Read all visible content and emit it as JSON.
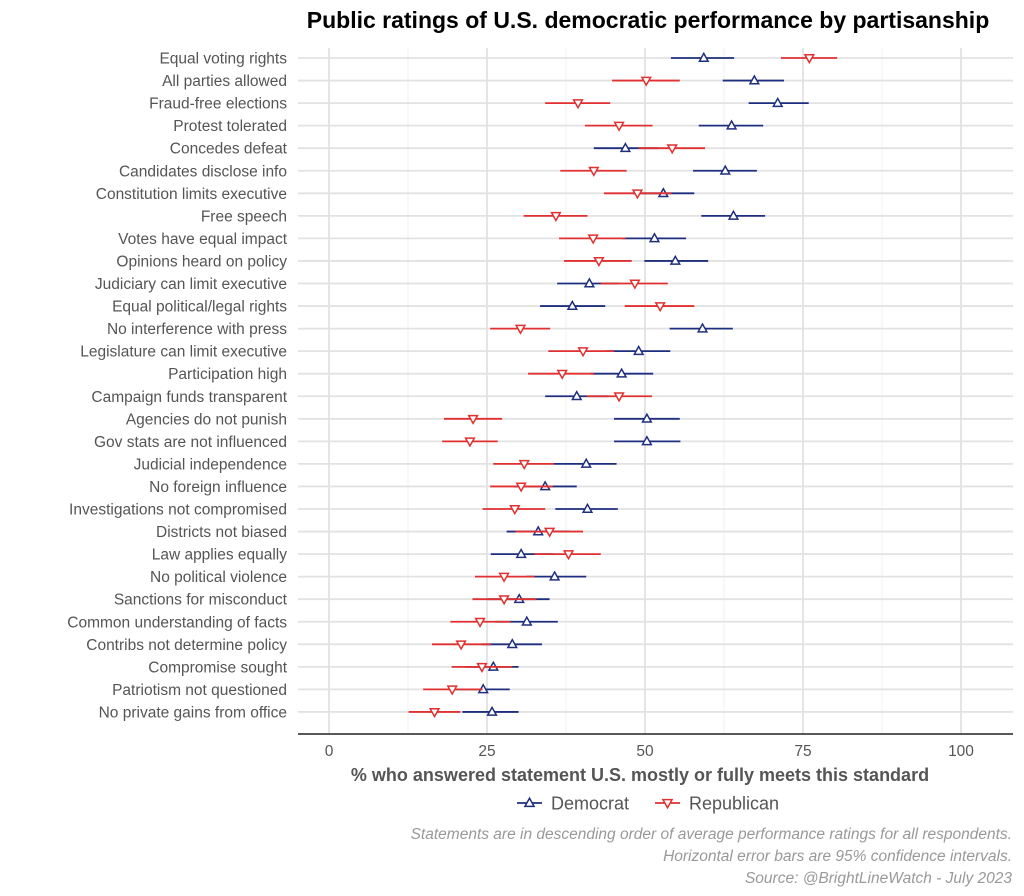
{
  "chart_data": {
    "type": "dot-errorbar",
    "title": "Public ratings of U.S. democratic performance by partisanship",
    "xlabel": "% who answered statement U.S. mostly or fully meets this standard",
    "xlim": [
      -5,
      108
    ],
    "xticks": [
      0,
      25,
      50,
      75,
      100
    ],
    "x_tick_labels": [
      "0",
      "25",
      "50",
      "75",
      "100"
    ],
    "grid": true,
    "legend_position": "bottom",
    "categories": [
      "Equal voting rights",
      "All parties allowed",
      "Fraud-free elections",
      "Protest tolerated",
      "Concedes defeat",
      "Candidates disclose info",
      "Constitution limits executive",
      "Free speech",
      "Votes have equal impact",
      "Opinions heard on policy",
      "Judiciary can limit executive",
      "Equal political/legal rights",
      "No interference with press",
      "Legislature can limit executive",
      "Participation high",
      "Campaign funds transparent",
      "Agencies do not punish",
      "Gov stats are not influenced",
      "Judicial independence",
      "No foreign influence",
      "Investigations not compromised",
      "Districts not biased",
      "Law applies equally",
      "No political violence",
      "Sanctions for misconduct",
      "Common understanding of facts",
      "Contribs not determine policy",
      "Compromise sought",
      "Patriotism not questioned",
      "No private gains from office"
    ],
    "series": [
      {
        "name": "Democrat",
        "color": "#1f2f7f",
        "marker": "triangle-up",
        "values": [
          59.3,
          67.3,
          71.0,
          63.7,
          46.9,
          62.7,
          52.9,
          64.0,
          51.5,
          54.8,
          41.2,
          38.5,
          59.1,
          49.0,
          46.3,
          39.2,
          50.3,
          50.3,
          40.7,
          34.2,
          40.9,
          33.1,
          30.4,
          35.7,
          30.1,
          31.3,
          29.0,
          26.0,
          24.4,
          25.8
        ],
        "lower": [
          54.1,
          62.3,
          66.4,
          58.5,
          41.9,
          57.6,
          48.0,
          58.9,
          46.4,
          49.9,
          36.1,
          33.4,
          53.9,
          43.9,
          41.4,
          34.2,
          45.1,
          45.1,
          35.6,
          29.2,
          35.8,
          28.1,
          25.6,
          31.2,
          25.1,
          26.3,
          24.2,
          21.5,
          19.8,
          21.1
        ],
        "upper": [
          64.1,
          72.0,
          75.9,
          68.7,
          52.1,
          67.7,
          57.8,
          69.0,
          56.5,
          60.0,
          45.9,
          43.7,
          63.9,
          54.0,
          51.3,
          44.2,
          55.5,
          55.6,
          45.5,
          39.2,
          45.7,
          38.1,
          35.5,
          40.7,
          34.9,
          36.2,
          33.7,
          30.0,
          28.6,
          30.0
        ]
      },
      {
        "name": "Republican",
        "color": "#e03030",
        "marker": "triangle-down",
        "values": [
          76.0,
          50.2,
          39.4,
          45.9,
          54.3,
          41.9,
          48.8,
          35.9,
          41.8,
          42.7,
          48.4,
          52.4,
          30.3,
          40.2,
          36.9,
          45.9,
          22.8,
          22.3,
          30.9,
          30.4,
          29.4,
          34.9,
          37.9,
          27.7,
          27.7,
          23.9,
          20.9,
          24.2,
          19.5,
          16.7
        ],
        "lower": [
          71.5,
          44.8,
          34.2,
          40.5,
          49.0,
          36.6,
          43.5,
          30.8,
          36.4,
          37.2,
          43.0,
          46.8,
          25.5,
          34.7,
          31.5,
          40.8,
          18.2,
          17.9,
          26.0,
          25.5,
          24.3,
          29.5,
          32.5,
          23.1,
          22.7,
          19.2,
          16.3,
          19.4,
          14.9,
          12.6
        ],
        "upper": [
          80.4,
          55.5,
          44.5,
          51.2,
          59.5,
          47.1,
          54.2,
          40.9,
          46.9,
          47.9,
          53.6,
          57.8,
          35.0,
          45.1,
          41.9,
          51.1,
          27.4,
          26.7,
          35.6,
          35.4,
          34.2,
          40.2,
          43.0,
          32.5,
          32.8,
          28.7,
          25.6,
          29.0,
          24.3,
          20.8
        ]
      }
    ],
    "caption_lines": [
      "Statements are in descending order of average performance ratings for all respondents.",
      "Horizontal error bars are 95% confidence intervals.",
      "Source: @BrightLineWatch - July 2023"
    ]
  }
}
